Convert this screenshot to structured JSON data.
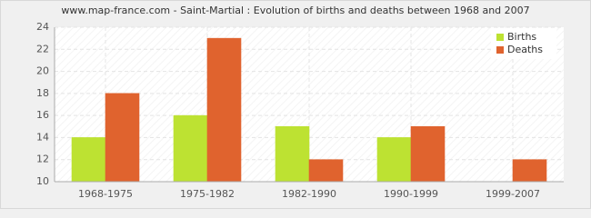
{
  "chart_data": {
    "type": "bar",
    "title": "www.map-france.com - Saint-Martial : Evolution of births and deaths between 1968 and 2007",
    "categories": [
      "1968-1975",
      "1975-1982",
      "1982-1990",
      "1990-1999",
      "1999-2007"
    ],
    "series": [
      {
        "name": "Births",
        "color": "#bde232",
        "values": [
          14,
          16,
          15,
          14,
          10
        ]
      },
      {
        "name": "Deaths",
        "color": "#e0632e",
        "values": [
          18,
          23,
          12,
          15,
          12
        ]
      }
    ],
    "ylim": [
      10,
      24
    ],
    "yticks": [
      10,
      12,
      14,
      16,
      18,
      20,
      22,
      24
    ],
    "grid": true,
    "legend": "top-right"
  }
}
